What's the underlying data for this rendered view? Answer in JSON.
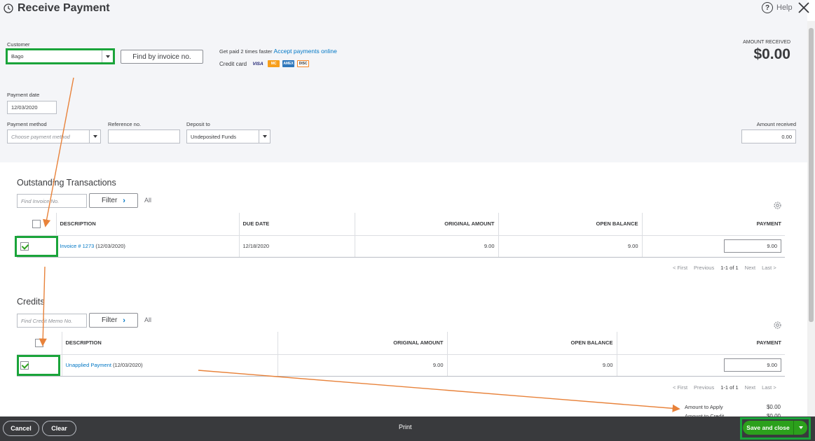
{
  "header": {
    "title": "Receive Payment",
    "help": "Help"
  },
  "customer": {
    "label": "Customer",
    "value": "Bago",
    "find_button": "Find by invoice no."
  },
  "promo": {
    "text": "Get paid 2 times faster",
    "link": "Accept payments online",
    "credit_card_label": "Credit card",
    "cards": [
      "VISA",
      "MC",
      "AMEX",
      "DISC"
    ]
  },
  "amount": {
    "label": "AMOUNT RECEIVED",
    "value": "$0.00"
  },
  "payment_date": {
    "label": "Payment date",
    "value": "12/03/2020"
  },
  "payment_method": {
    "label": "Payment method",
    "placeholder": "Choose payment method"
  },
  "reference": {
    "label": "Reference no.",
    "value": ""
  },
  "deposit": {
    "label": "Deposit to",
    "value": "Undeposited Funds"
  },
  "amount_received": {
    "label": "Amount received",
    "value": "0.00"
  },
  "outstanding": {
    "title": "Outstanding Transactions",
    "search_placeholder": "Find Invoice No.",
    "filter": "Filter",
    "all": "All",
    "headers": {
      "description": "DESCRIPTION",
      "due_date": "DUE DATE",
      "original": "ORIGINAL AMOUNT",
      "open": "OPEN BALANCE",
      "payment": "PAYMENT"
    },
    "rows": [
      {
        "link": "Invoice # 1273",
        "date": "(12/03/2020)",
        "due_date": "12/18/2020",
        "original": "9.00",
        "open": "9.00",
        "payment": "9.00"
      }
    ],
    "pager": {
      "first": "< First",
      "previous": "Previous",
      "range": "1-1 of 1",
      "next": "Next",
      "last": "Last >"
    }
  },
  "credits": {
    "title": "Credits",
    "search_placeholder": "Find Credit Memo No.",
    "filter": "Filter",
    "all": "All",
    "headers": {
      "description": "DESCRIPTION",
      "original": "ORIGINAL AMOUNT",
      "open": "OPEN BALANCE",
      "payment": "PAYMENT"
    },
    "rows": [
      {
        "link": "Unapplied Payment",
        "date": "(12/03/2020)",
        "original": "9.00",
        "open": "9.00",
        "payment": "9.00"
      }
    ],
    "pager": {
      "first": "< First",
      "previous": "Previous",
      "range": "1-1 of 1",
      "next": "Next",
      "last": "Last >"
    }
  },
  "summary": {
    "apply_label": "Amount to Apply",
    "apply_value": "$0.00",
    "credit_label": "Amount to Credit",
    "credit_value": "$0.00"
  },
  "footer": {
    "cancel": "Cancel",
    "clear": "Clear",
    "print": "Print",
    "save": "Save and close"
  },
  "colors": {
    "accent_green": "#2ca01c",
    "link_blue": "#0077c5",
    "annotation_box": "#1aa43a",
    "annotation_arrow": "#e8823a"
  }
}
